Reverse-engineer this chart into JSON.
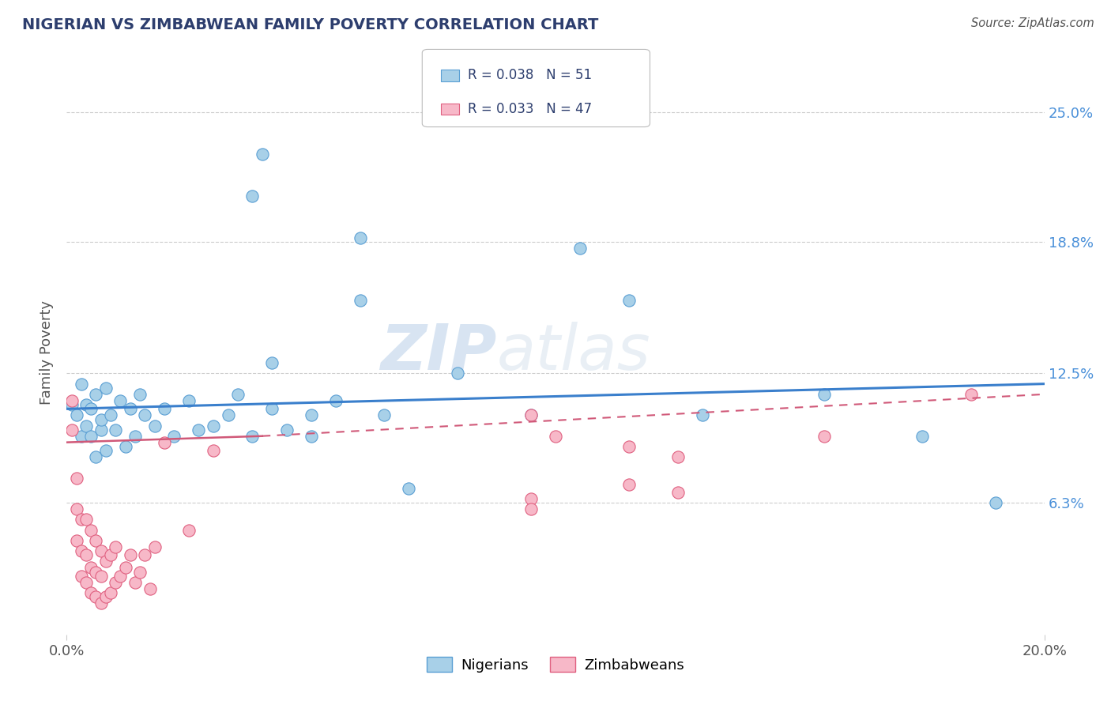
{
  "title": "NIGERIAN VS ZIMBABWEAN FAMILY POVERTY CORRELATION CHART",
  "source": "Source: ZipAtlas.com",
  "ylabel": "Family Poverty",
  "y_ticks": [
    0.063,
    0.125,
    0.188,
    0.25
  ],
  "y_tick_labels": [
    "6.3%",
    "12.5%",
    "18.8%",
    "25.0%"
  ],
  "x_min": 0.0,
  "x_max": 0.2,
  "y_min": 0.0,
  "y_max": 0.27,
  "nigerian_color": "#a8d0e8",
  "nigerian_edge": "#5a9fd4",
  "zimbabwean_color": "#f7b8c8",
  "zimbabwean_edge": "#e06080",
  "legend_nigerian_label": "R = 0.038   N = 51",
  "legend_zimbabwean_label": "R = 0.033   N = 47",
  "legend_nigerians": "Nigerians",
  "legend_zimbabweans": "Zimbabweans",
  "title_color": "#2d3e6e",
  "axis_label_color": "#555555",
  "tick_color": "#555555",
  "trend_color_nigerian": "#3a7fcc",
  "trend_color_zimbabwean": "#d05878",
  "background_color": "#ffffff",
  "grid_color": "#cccccc",
  "watermark_color": "#c5d8ea",
  "nigerian_trend_y0": 0.108,
  "nigerian_trend_y1": 0.12,
  "zimbabwean_trend_solid_x0": 0.0,
  "zimbabwean_trend_solid_x1": 0.04,
  "zimbabwean_trend_y0": 0.092,
  "zimbabwean_trend_y1": 0.095,
  "zimbabwean_trend_dash_x0": 0.04,
  "zimbabwean_trend_dash_x1": 0.2,
  "zimbabwean_trend_dash_y0": 0.095,
  "zimbabwean_trend_dash_y1": 0.115,
  "nigerians_x": [
    0.001,
    0.002,
    0.003,
    0.003,
    0.004,
    0.004,
    0.005,
    0.005,
    0.006,
    0.006,
    0.007,
    0.007,
    0.008,
    0.008,
    0.009,
    0.01,
    0.011,
    0.012,
    0.013,
    0.014,
    0.015,
    0.016,
    0.018,
    0.02,
    0.022,
    0.025,
    0.027,
    0.03,
    0.033,
    0.035,
    0.038,
    0.04,
    0.042,
    0.045,
    0.05,
    0.055,
    0.06,
    0.065,
    0.038,
    0.042,
    0.05,
    0.08,
    0.095,
    0.105,
    0.115,
    0.13,
    0.155,
    0.175,
    0.06,
    0.07,
    0.19
  ],
  "nigerians_y": [
    0.11,
    0.105,
    0.095,
    0.12,
    0.1,
    0.11,
    0.095,
    0.108,
    0.085,
    0.115,
    0.098,
    0.103,
    0.088,
    0.118,
    0.105,
    0.098,
    0.112,
    0.09,
    0.108,
    0.095,
    0.115,
    0.105,
    0.1,
    0.108,
    0.095,
    0.112,
    0.098,
    0.1,
    0.105,
    0.115,
    0.21,
    0.23,
    0.108,
    0.098,
    0.095,
    0.112,
    0.16,
    0.105,
    0.095,
    0.13,
    0.105,
    0.125,
    0.105,
    0.185,
    0.16,
    0.105,
    0.115,
    0.095,
    0.19,
    0.07,
    0.063
  ],
  "zimbabweans_x": [
    0.001,
    0.001,
    0.002,
    0.002,
    0.002,
    0.003,
    0.003,
    0.003,
    0.004,
    0.004,
    0.004,
    0.005,
    0.005,
    0.005,
    0.006,
    0.006,
    0.006,
    0.007,
    0.007,
    0.007,
    0.008,
    0.008,
    0.009,
    0.009,
    0.01,
    0.01,
    0.011,
    0.012,
    0.013,
    0.014,
    0.015,
    0.016,
    0.017,
    0.018,
    0.02,
    0.025,
    0.03,
    0.095,
    0.1,
    0.115,
    0.125,
    0.155,
    0.185,
    0.115,
    0.095,
    0.125,
    0.095
  ],
  "zimbabweans_y": [
    0.112,
    0.098,
    0.045,
    0.06,
    0.075,
    0.028,
    0.04,
    0.055,
    0.025,
    0.038,
    0.055,
    0.02,
    0.032,
    0.05,
    0.018,
    0.03,
    0.045,
    0.015,
    0.028,
    0.04,
    0.018,
    0.035,
    0.02,
    0.038,
    0.025,
    0.042,
    0.028,
    0.032,
    0.038,
    0.025,
    0.03,
    0.038,
    0.022,
    0.042,
    0.092,
    0.05,
    0.088,
    0.105,
    0.095,
    0.09,
    0.085,
    0.095,
    0.115,
    0.072,
    0.065,
    0.068,
    0.06
  ]
}
